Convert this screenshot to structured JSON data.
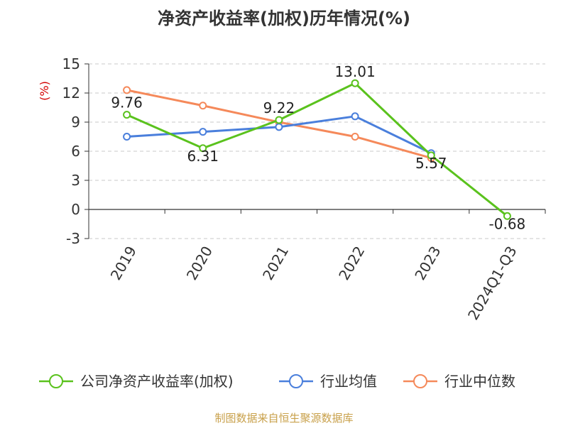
{
  "chart_data": {
    "type": "line",
    "title": "净资产收益率(加权)历年情况(%)",
    "ylabel": "(%)",
    "ylim": [
      -3,
      15
    ],
    "yticks": [
      15,
      12,
      9,
      6,
      3,
      0,
      -3
    ],
    "categories": [
      "2019",
      "2020",
      "2021",
      "2022",
      "2023",
      "2024Q1-Q3"
    ],
    "series": [
      {
        "name": "公司净资产收益率(加权)",
        "color": "#5ac21d",
        "values": [
          9.76,
          6.31,
          9.22,
          13.01,
          5.57,
          -0.68
        ],
        "labels": [
          "9.76",
          "6.31",
          "9.22",
          "13.01",
          "5.57",
          "-0.68"
        ]
      },
      {
        "name": "行业均值",
        "color": "#4a7fdc",
        "values": [
          7.5,
          8.0,
          8.5,
          9.6,
          5.8,
          null
        ],
        "labels": []
      },
      {
        "name": "行业中位数",
        "color": "#f5895a",
        "values": [
          12.3,
          10.7,
          9.0,
          7.5,
          5.3,
          null
        ],
        "labels": []
      }
    ],
    "grid": true,
    "legend": "bottom"
  },
  "source": "制图数据来自恒生聚源数据库"
}
